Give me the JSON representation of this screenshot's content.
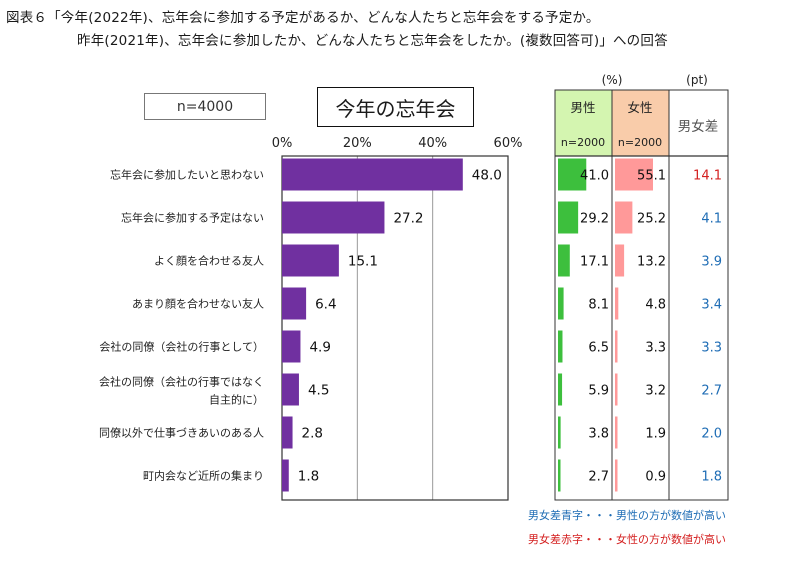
{
  "titles": {
    "line1": "図表６「今年(2022年)、忘年会に参加する予定があるか、どんな人たちと忘年会をする予定か。",
    "line2": "昨年(2021年)、忘年会に参加したか、どんな人たちと忘年会をしたか。(複数回答可)」への回答"
  },
  "sample": "n=4000",
  "chart_data": {
    "type": "bar",
    "orientation": "horizontal",
    "title": "今年の忘年会",
    "categories": [
      "忘年会に参加したいと思わない",
      "忘年会に参加する予定はない",
      "よく顔を合わせる友人",
      "あまり顔を合わせない友人",
      "会社の同僚（会社の行事として）",
      "会社の同僚（会社の行事ではなく\n自主的に）",
      "同僚以外で仕事づきあいのある人",
      "町内会など近所の集まり"
    ],
    "values": [
      48.0,
      27.2,
      15.1,
      6.4,
      4.9,
      4.5,
      2.8,
      1.8
    ],
    "value_labels": [
      "48.0",
      "27.2",
      "15.1",
      "6.4",
      "4.9",
      "4.5",
      "2.8",
      "1.8"
    ],
    "xlim": [
      0,
      60
    ],
    "x_ticks": [
      "0%",
      "20%",
      "40%",
      "60%"
    ],
    "grid": true,
    "colors": {
      "bar": "#7030a0",
      "male": "#3dbf3d",
      "female": "#ff9999",
      "male_bg": "#d4f5b0",
      "female_bg": "#f9ccaa",
      "blue": "#1f6db5",
      "red": "#d42020"
    },
    "side_table": {
      "unit_pct": "(%)",
      "unit_pt": "(pt)",
      "male_header": "男性",
      "male_n": "n=2000",
      "female_header": "女性",
      "female_n": "n=2000",
      "diff_header": "男女差",
      "male": [
        41.0,
        29.2,
        17.1,
        8.1,
        6.5,
        5.9,
        3.8,
        2.7
      ],
      "male_labels": [
        "41.0",
        "29.2",
        "17.1",
        "8.1",
        "6.5",
        "5.9",
        "3.8",
        "2.7"
      ],
      "female": [
        55.1,
        25.2,
        13.2,
        4.8,
        3.3,
        3.2,
        1.9,
        0.9
      ],
      "female_labels": [
        "55.1",
        "25.2",
        "13.2",
        "4.8",
        "3.3",
        "3.2",
        "1.9",
        "0.9"
      ],
      "diff_labels": [
        "14.1",
        "4.1",
        "3.9",
        "3.4",
        "3.3",
        "2.7",
        "2.0",
        "1.8"
      ],
      "diff_color": [
        "red",
        "blue",
        "blue",
        "blue",
        "blue",
        "blue",
        "blue",
        "blue"
      ]
    }
  },
  "notes": {
    "blue": "男女差青字・・・男性の方が数値が高い",
    "red": "男女差赤字・・・女性の方が数値が高い"
  }
}
